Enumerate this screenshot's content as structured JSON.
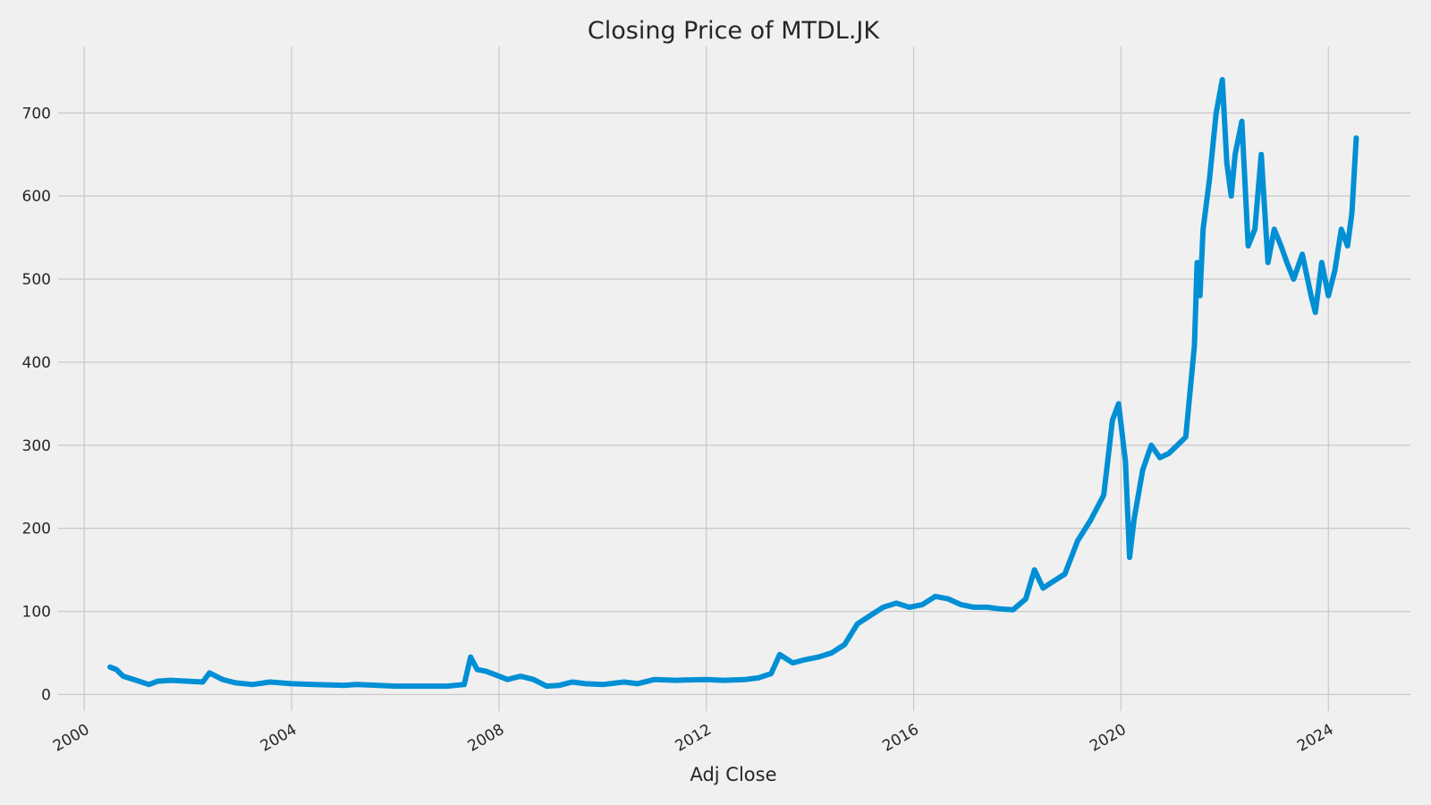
{
  "chart_data": {
    "type": "line",
    "title": "Closing Price of MTDL.JK",
    "xlabel": "Adj Close",
    "ylabel": "",
    "grid": true,
    "line_color": "#008fd5",
    "background_color": "#f0f0f0",
    "grid_color": "#cbcbcb",
    "xlim": [
      "1999-07-01",
      "2025-08-01"
    ],
    "ylim": [
      -20,
      780
    ],
    "x_ticks": [
      "2000-01-01",
      "2004-01-01",
      "2008-01-01",
      "2012-01-01",
      "2016-01-01",
      "2020-01-01",
      "2024-01-01"
    ],
    "x_tick_labels": [
      "2000",
      "2004",
      "2008",
      "2012",
      "2016",
      "2020",
      "2024"
    ],
    "y_ticks": [
      0,
      100,
      200,
      300,
      400,
      500,
      600,
      700
    ],
    "y_tick_labels": [
      "0",
      "100",
      "200",
      "300",
      "400",
      "500",
      "600",
      "700"
    ],
    "series": [
      {
        "x": [
          "2000-07-01",
          "2000-08-15",
          "2000-10-01",
          "2001-01-01",
          "2001-04-01",
          "2001-06-01",
          "2001-09-01",
          "2002-01-01",
          "2002-04-15",
          "2002-06-01",
          "2002-09-01",
          "2002-12-01",
          "2003-04-01",
          "2003-08-01",
          "2004-01-01",
          "2004-06-01",
          "2005-01-01",
          "2005-04-01",
          "2005-09-01",
          "2006-01-01",
          "2006-06-01",
          "2006-09-01",
          "2007-01-01",
          "2007-03-01",
          "2007-05-01",
          "2007-06-15",
          "2007-08-01",
          "2007-10-01",
          "2007-12-01",
          "2008-03-01",
          "2008-06-01",
          "2008-09-01",
          "2008-12-01",
          "2009-03-01",
          "2009-06-01",
          "2009-09-01",
          "2010-01-01",
          "2010-06-01",
          "2010-09-01",
          "2011-01-01",
          "2011-06-01",
          "2012-01-01",
          "2012-05-01",
          "2012-10-01",
          "2013-01-01",
          "2013-04-01",
          "2013-06-01",
          "2013-09-01",
          "2013-12-01",
          "2014-03-01",
          "2014-06-01",
          "2014-09-01",
          "2014-12-01",
          "2015-03-01",
          "2015-06-01",
          "2015-09-01",
          "2015-12-01",
          "2016-03-01",
          "2016-06-01",
          "2016-09-01",
          "2016-12-01",
          "2017-03-01",
          "2017-06-01",
          "2017-09-01",
          "2017-12-01",
          "2018-03-01",
          "2018-05-01",
          "2018-07-01",
          "2018-09-01",
          "2018-12-01",
          "2019-03-01",
          "2019-06-01",
          "2019-09-01",
          "2019-11-01",
          "2019-12-15",
          "2020-02-01",
          "2020-03-01",
          "2020-04-01",
          "2020-06-01",
          "2020-08-01",
          "2020-10-01",
          "2020-12-01",
          "2021-02-01",
          "2021-04-01",
          "2021-06-01",
          "2021-06-20",
          "2021-07-10",
          "2021-08-01",
          "2021-09-15",
          "2021-11-01",
          "2021-12-15",
          "2022-01-15",
          "2022-02-15",
          "2022-03-15",
          "2022-05-01",
          "2022-06-15",
          "2022-08-01",
          "2022-09-15",
          "2022-11-01",
          "2022-12-15",
          "2023-02-01",
          "2023-03-15",
          "2023-05-01",
          "2023-07-01",
          "2023-09-01",
          "2023-10-01",
          "2023-11-15",
          "2024-01-01",
          "2024-02-15",
          "2024-04-01",
          "2024-05-15",
          "2024-06-15",
          "2024-07-15"
        ],
        "y": [
          33,
          30,
          22,
          17,
          12,
          16,
          17,
          16,
          15,
          26,
          18,
          14,
          12,
          15,
          13,
          12,
          11,
          12,
          11,
          10,
          10,
          10,
          10,
          11,
          12,
          45,
          30,
          28,
          24,
          18,
          22,
          18,
          10,
          11,
          15,
          13,
          12,
          15,
          13,
          18,
          17,
          18,
          17,
          18,
          20,
          25,
          48,
          38,
          42,
          45,
          50,
          60,
          85,
          95,
          105,
          110,
          105,
          108,
          118,
          115,
          108,
          105,
          105,
          103,
          102,
          115,
          150,
          128,
          135,
          145,
          185,
          210,
          240,
          330,
          350,
          280,
          165,
          210,
          270,
          300,
          285,
          290,
          300,
          310,
          420,
          520,
          480,
          560,
          620,
          700,
          740,
          640,
          600,
          650,
          690,
          540,
          560,
          650,
          520,
          560,
          540,
          520,
          500,
          530,
          480,
          460,
          520,
          480,
          510,
          560,
          540,
          580,
          670
        ]
      }
    ]
  }
}
